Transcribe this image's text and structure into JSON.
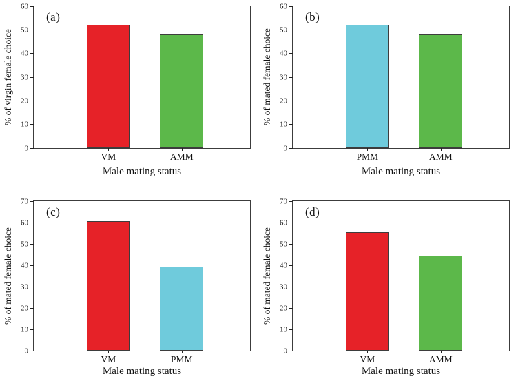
{
  "figure": {
    "background": "#ffffff",
    "frame_color": "#3c3c3c",
    "bar_border_color": "#3d3d3d",
    "tick_color": "#222222",
    "text_color": "#111111"
  },
  "chart_data": [
    {
      "type": "bar",
      "panel_label": "(a)",
      "categories": [
        "VM",
        "AMM"
      ],
      "values": [
        52,
        48
      ],
      "bar_colors": [
        "#e62228",
        "#5cb84a"
      ],
      "xlabel": "Male mating status",
      "ylabel": "% of virgin female choice",
      "ylim": [
        0,
        60
      ],
      "yticks": [
        0,
        10,
        20,
        30,
        40,
        50,
        60
      ],
      "grid": false,
      "legend": "none"
    },
    {
      "type": "bar",
      "panel_label": "(b)",
      "categories": [
        "PMM",
        "AMM"
      ],
      "values": [
        52,
        48
      ],
      "bar_colors": [
        "#6fcbdc",
        "#5cb84a"
      ],
      "xlabel": "Male mating status",
      "ylabel": "% of mated female choice",
      "ylim": [
        0,
        60
      ],
      "yticks": [
        0,
        10,
        20,
        30,
        40,
        50,
        60
      ],
      "grid": false,
      "legend": "none"
    },
    {
      "type": "bar",
      "panel_label": "(c)",
      "categories": [
        "VM",
        "PMM"
      ],
      "values": [
        60.5,
        39.5
      ],
      "bar_colors": [
        "#e62228",
        "#6fcbdc"
      ],
      "xlabel": "Male mating status",
      "ylabel": "% of mated female choice",
      "ylim": [
        0,
        70
      ],
      "yticks": [
        0,
        10,
        20,
        30,
        40,
        50,
        60,
        70
      ],
      "grid": false,
      "legend": "none"
    },
    {
      "type": "bar",
      "panel_label": "(d)",
      "categories": [
        "VM",
        "AMM"
      ],
      "values": [
        55.5,
        44.5
      ],
      "bar_colors": [
        "#e62228",
        "#5cb84a"
      ],
      "xlabel": "Male mating status",
      "ylabel": "% of mated female choice",
      "ylim": [
        0,
        70
      ],
      "yticks": [
        0,
        10,
        20,
        30,
        40,
        50,
        60,
        70
      ],
      "grid": false,
      "legend": "none"
    }
  ]
}
